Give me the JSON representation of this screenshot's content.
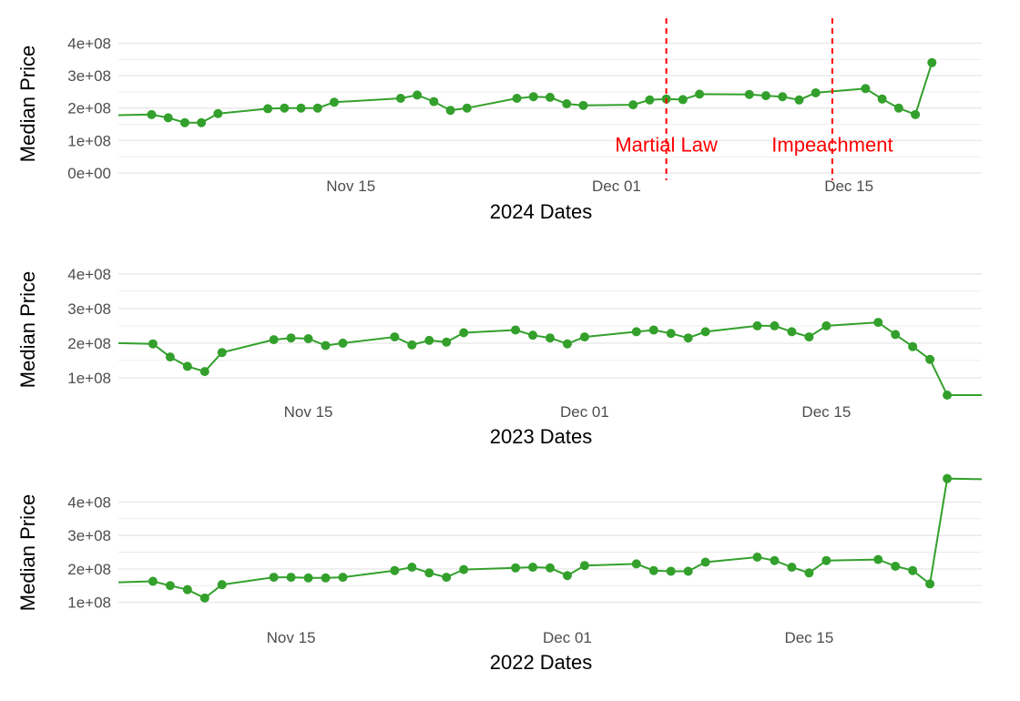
{
  "colors": {
    "line": "#33a02c",
    "point": "#33a02c",
    "annotation": "#ff0000",
    "grid": "#ebebeb",
    "tick_text": "#4d4d4d"
  },
  "chart_data": [
    {
      "type": "line",
      "title": "",
      "xlabel": "2024 Dates",
      "ylabel": "Median Price",
      "x_tick_labels": [
        "Nov 15",
        "Dec 01",
        "Dec 15"
      ],
      "y_tick_labels": [
        "0e+00",
        "1e+08",
        "2e+08",
        "3e+08",
        "4e+08"
      ],
      "x_ticks": [
        "2024-11-15",
        "2024-12-01",
        "2024-12-15"
      ],
      "y_ticks": [
        0,
        100000000,
        200000000,
        300000000,
        400000000
      ],
      "ylim": [
        0,
        460000000
      ],
      "xlim": [
        "2024-11-01",
        "2024-12-23"
      ],
      "grid": true,
      "series": [
        {
          "points": [
            {
              "x": "2024-11-01",
              "y": 178000000,
              "marker": false
            },
            {
              "x": "2024-11-03",
              "y": 180000000
            },
            {
              "x": "2024-11-04",
              "y": 170000000
            },
            {
              "x": "2024-11-05",
              "y": 155000000
            },
            {
              "x": "2024-11-06",
              "y": 155000000
            },
            {
              "x": "2024-11-07",
              "y": 183000000
            },
            {
              "x": "2024-11-10",
              "y": 198000000
            },
            {
              "x": "2024-11-11",
              "y": 200000000
            },
            {
              "x": "2024-11-12",
              "y": 200000000
            },
            {
              "x": "2024-11-13",
              "y": 200000000
            },
            {
              "x": "2024-11-14",
              "y": 218000000
            },
            {
              "x": "2024-11-18",
              "y": 230000000
            },
            {
              "x": "2024-11-19",
              "y": 240000000
            },
            {
              "x": "2024-11-20",
              "y": 220000000
            },
            {
              "x": "2024-11-21",
              "y": 193000000
            },
            {
              "x": "2024-11-22",
              "y": 200000000
            },
            {
              "x": "2024-11-25",
              "y": 230000000
            },
            {
              "x": "2024-11-26",
              "y": 235000000
            },
            {
              "x": "2024-11-27",
              "y": 233000000
            },
            {
              "x": "2024-11-28",
              "y": 213000000
            },
            {
              "x": "2024-11-29",
              "y": 208000000
            },
            {
              "x": "2024-12-02",
              "y": 210000000
            },
            {
              "x": "2024-12-03",
              "y": 225000000
            },
            {
              "x": "2024-12-04",
              "y": 228000000
            },
            {
              "x": "2024-12-05",
              "y": 226000000
            },
            {
              "x": "2024-12-06",
              "y": 243000000
            },
            {
              "x": "2024-12-09",
              "y": 242000000
            },
            {
              "x": "2024-12-10",
              "y": 238000000
            },
            {
              "x": "2024-12-11",
              "y": 235000000
            },
            {
              "x": "2024-12-12",
              "y": 225000000
            },
            {
              "x": "2024-12-13",
              "y": 247000000
            },
            {
              "x": "2024-12-16",
              "y": 260000000
            },
            {
              "x": "2024-12-17",
              "y": 228000000
            },
            {
              "x": "2024-12-18",
              "y": 200000000
            },
            {
              "x": "2024-12-19",
              "y": 180000000
            },
            {
              "x": "2024-12-20",
              "y": 340000000
            }
          ]
        }
      ],
      "vlines": [
        {
          "x": "2024-12-04",
          "label": "Martial Law"
        },
        {
          "x": "2024-12-14",
          "label": "Impeachment"
        }
      ]
    },
    {
      "type": "line",
      "title": "",
      "xlabel": "2023 Dates",
      "ylabel": "Median Price",
      "x_tick_labels": [
        "Nov 15",
        "Dec 01",
        "Dec 15"
      ],
      "y_tick_labels": [
        "1e+08",
        "2e+08",
        "3e+08",
        "4e+08"
      ],
      "x_ticks": [
        "2023-11-15",
        "2023-12-01",
        "2023-12-15"
      ],
      "y_ticks": [
        100000000,
        200000000,
        300000000,
        400000000
      ],
      "ylim": [
        50000000,
        460000000
      ],
      "xlim": [
        "2023-11-04",
        "2023-12-24"
      ],
      "grid": true,
      "series": [
        {
          "points": [
            {
              "x": "2023-11-04",
              "y": 200000000,
              "marker": false
            },
            {
              "x": "2023-11-06",
              "y": 198000000
            },
            {
              "x": "2023-11-07",
              "y": 160000000
            },
            {
              "x": "2023-11-08",
              "y": 133000000
            },
            {
              "x": "2023-11-09",
              "y": 118000000
            },
            {
              "x": "2023-11-10",
              "y": 173000000
            },
            {
              "x": "2023-11-13",
              "y": 210000000
            },
            {
              "x": "2023-11-14",
              "y": 215000000
            },
            {
              "x": "2023-11-15",
              "y": 213000000
            },
            {
              "x": "2023-11-16",
              "y": 193000000
            },
            {
              "x": "2023-11-17",
              "y": 200000000
            },
            {
              "x": "2023-11-20",
              "y": 218000000
            },
            {
              "x": "2023-11-21",
              "y": 195000000
            },
            {
              "x": "2023-11-22",
              "y": 208000000
            },
            {
              "x": "2023-11-23",
              "y": 203000000
            },
            {
              "x": "2023-11-24",
              "y": 230000000
            },
            {
              "x": "2023-11-27",
              "y": 238000000
            },
            {
              "x": "2023-11-28",
              "y": 223000000
            },
            {
              "x": "2023-11-29",
              "y": 215000000
            },
            {
              "x": "2023-11-30",
              "y": 198000000
            },
            {
              "x": "2023-12-01",
              "y": 218000000
            },
            {
              "x": "2023-12-04",
              "y": 233000000
            },
            {
              "x": "2023-12-05",
              "y": 238000000
            },
            {
              "x": "2023-12-06",
              "y": 228000000
            },
            {
              "x": "2023-12-07",
              "y": 215000000
            },
            {
              "x": "2023-12-08",
              "y": 233000000
            },
            {
              "x": "2023-12-11",
              "y": 250000000
            },
            {
              "x": "2023-12-12",
              "y": 250000000
            },
            {
              "x": "2023-12-13",
              "y": 233000000
            },
            {
              "x": "2023-12-14",
              "y": 218000000
            },
            {
              "x": "2023-12-15",
              "y": 250000000
            },
            {
              "x": "2023-12-18",
              "y": 260000000
            },
            {
              "x": "2023-12-19",
              "y": 225000000
            },
            {
              "x": "2023-12-20",
              "y": 190000000
            },
            {
              "x": "2023-12-21",
              "y": 153000000
            },
            {
              "x": "2023-12-22",
              "y": 50000000
            },
            {
              "x": "2023-12-24",
              "y": 50000000,
              "marker": false
            }
          ]
        }
      ],
      "vlines": []
    },
    {
      "type": "line",
      "title": "",
      "xlabel": "2022 Dates",
      "ylabel": "Median Price",
      "x_tick_labels": [
        "Nov 15",
        "Dec 01",
        "Dec 15"
      ],
      "y_tick_labels": [
        "1e+08",
        "2e+08",
        "3e+08",
        "4e+08"
      ],
      "x_ticks": [
        "2022-11-15",
        "2022-12-01",
        "2022-12-15"
      ],
      "y_ticks": [
        100000000,
        200000000,
        300000000,
        400000000
      ],
      "ylim": [
        50000000,
        480000000
      ],
      "xlim": [
        "2022-11-05",
        "2022-12-25"
      ],
      "grid": true,
      "series": [
        {
          "points": [
            {
              "x": "2022-11-05",
              "y": 160000000,
              "marker": false
            },
            {
              "x": "2022-11-07",
              "y": 163000000
            },
            {
              "x": "2022-11-08",
              "y": 150000000
            },
            {
              "x": "2022-11-09",
              "y": 138000000
            },
            {
              "x": "2022-11-10",
              "y": 113000000
            },
            {
              "x": "2022-11-11",
              "y": 153000000
            },
            {
              "x": "2022-11-14",
              "y": 175000000
            },
            {
              "x": "2022-11-15",
              "y": 175000000
            },
            {
              "x": "2022-11-16",
              "y": 173000000
            },
            {
              "x": "2022-11-17",
              "y": 173000000
            },
            {
              "x": "2022-11-18",
              "y": 175000000
            },
            {
              "x": "2022-11-21",
              "y": 195000000
            },
            {
              "x": "2022-11-22",
              "y": 205000000
            },
            {
              "x": "2022-11-23",
              "y": 188000000
            },
            {
              "x": "2022-11-24",
              "y": 175000000
            },
            {
              "x": "2022-11-25",
              "y": 198000000
            },
            {
              "x": "2022-11-28",
              "y": 203000000
            },
            {
              "x": "2022-11-29",
              "y": 205000000
            },
            {
              "x": "2022-11-30",
              "y": 203000000
            },
            {
              "x": "2022-12-01",
              "y": 180000000
            },
            {
              "x": "2022-12-02",
              "y": 210000000
            },
            {
              "x": "2022-12-05",
              "y": 215000000
            },
            {
              "x": "2022-12-06",
              "y": 195000000
            },
            {
              "x": "2022-12-07",
              "y": 193000000
            },
            {
              "x": "2022-12-08",
              "y": 193000000
            },
            {
              "x": "2022-12-09",
              "y": 220000000
            },
            {
              "x": "2022-12-12",
              "y": 235000000
            },
            {
              "x": "2022-12-13",
              "y": 225000000
            },
            {
              "x": "2022-12-14",
              "y": 205000000
            },
            {
              "x": "2022-12-15",
              "y": 188000000
            },
            {
              "x": "2022-12-16",
              "y": 225000000
            },
            {
              "x": "2022-12-19",
              "y": 228000000
            },
            {
              "x": "2022-12-20",
              "y": 208000000
            },
            {
              "x": "2022-12-21",
              "y": 195000000
            },
            {
              "x": "2022-12-22",
              "y": 155000000
            },
            {
              "x": "2022-12-23",
              "y": 470000000
            },
            {
              "x": "2022-12-25",
              "y": 468000000,
              "marker": false
            }
          ]
        }
      ],
      "vlines": []
    }
  ]
}
